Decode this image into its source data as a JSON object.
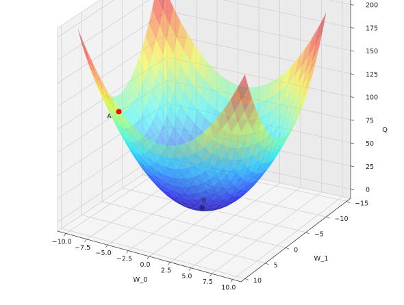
{
  "chart_data": {
    "type": "surface3d",
    "title": "",
    "xlabel": "W_0",
    "ylabel": "W_1",
    "zlabel": "Q",
    "xlim": [
      -11,
      11
    ],
    "ylim": [
      -16,
      11
    ],
    "zlim": [
      -10,
      210
    ],
    "x_ticks": [
      -10.0,
      -7.5,
      -5.0,
      -2.5,
      0.0,
      2.5,
      5.0,
      7.5,
      10.0
    ],
    "x_tick_labels": [
      "−10.0",
      "−7.5",
      "−5.0",
      "−2.5",
      "0.0",
      "2.5",
      "5.0",
      "7.5",
      "10.0"
    ],
    "y_ticks": [
      -15,
      -10,
      -5,
      0,
      5,
      10
    ],
    "y_tick_labels": [
      "−15",
      "−10",
      "−5",
      "0",
      "5",
      "10"
    ],
    "z_ticks": [
      0,
      25,
      50,
      75,
      100,
      125,
      150,
      175,
      200
    ],
    "z_tick_labels": [
      "0",
      "25",
      "50",
      "75",
      "100",
      "125",
      "150",
      "175",
      "200"
    ],
    "surface": {
      "function": "Q = W_0^2 + (W_1 + 2)^2 + 2",
      "x_range": [
        -10,
        10
      ],
      "y_range": [
        -12,
        8
      ],
      "colormap": "jet",
      "alpha": 0.45
    },
    "points": [
      {
        "label": "A",
        "x": -9,
        "y": 0,
        "z": 92,
        "color": "#ff0000"
      },
      {
        "label": "B",
        "x": 0,
        "y": -2,
        "z": 2,
        "color": "#1f2a8a"
      }
    ],
    "grid": true
  }
}
